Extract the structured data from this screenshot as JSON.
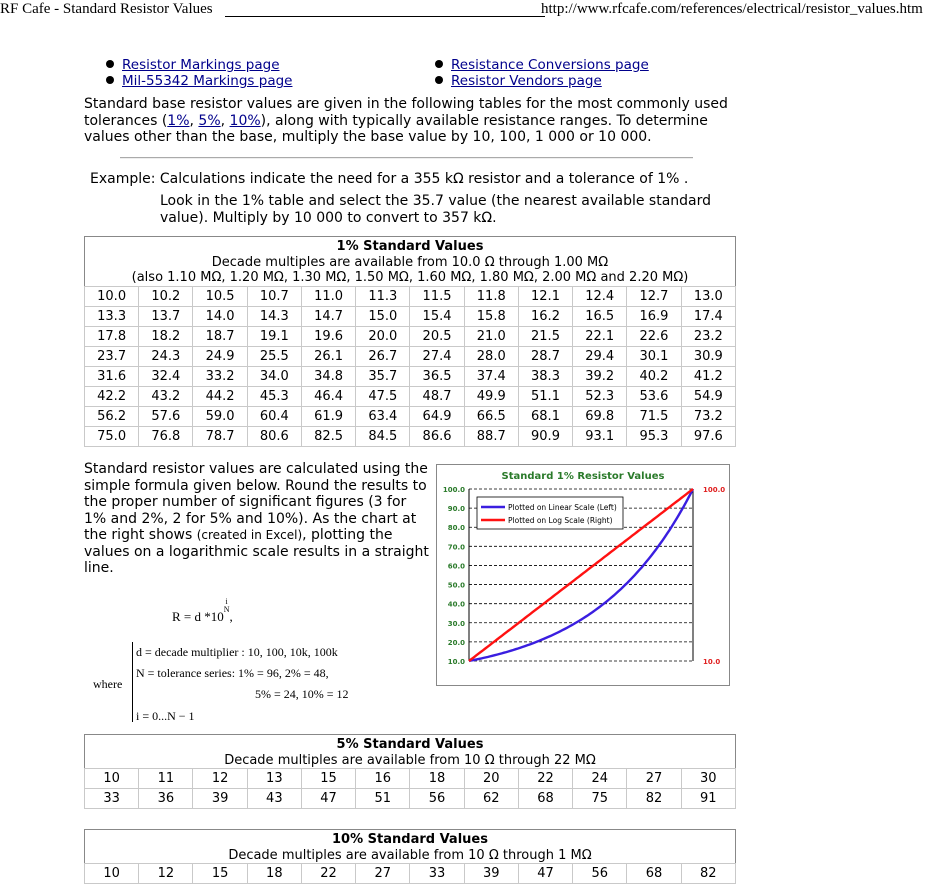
{
  "header": {
    "page_title": "RF Cafe - Standard Resistor Values",
    "url": "http://www.rfcafe.com/references/electrical/resistor_values.htm"
  },
  "links": {
    "left": [
      "Resistor Markings page",
      "Mil-55342 Markings page"
    ],
    "right": [
      "Resistance Conversions page",
      "Resistor Vendors page"
    ]
  },
  "intro": {
    "text_a": "Standard base resistor values are given in the following tables for the most commonly used tolerances (",
    "link_1": "1%",
    "sep_1": ", ",
    "link_5": "5%",
    "sep_2": ", ",
    "link_10": "10%",
    "text_b": "), along with typically available resistance ranges. To determine values other than the base, multiply the base value by 10, 100, 1 000 or 10 000."
  },
  "example": {
    "line1": "Example: Calculations indicate the need for a 355 kΩ resistor and a tolerance of 1% .",
    "line2": "Look in the 1% table and select the 35.7 value (the nearest available standard value). Multiply by 10 000 to convert to 357 kΩ."
  },
  "table1": {
    "title": "1% Standard Values",
    "subtitle": "Decade multiples are available from 10.0 Ω through 1.00 MΩ",
    "note": "(also 1.10 MΩ, 1.20 MΩ, 1.30 MΩ, 1.50 MΩ, 1.60 MΩ, 1.80 MΩ, 2.00 MΩ and 2.20 MΩ)",
    "rows": [
      [
        "10.0",
        "10.2",
        "10.5",
        "10.7",
        "11.0",
        "11.3",
        "11.5",
        "11.8",
        "12.1",
        "12.4",
        "12.7",
        "13.0"
      ],
      [
        "13.3",
        "13.7",
        "14.0",
        "14.3",
        "14.7",
        "15.0",
        "15.4",
        "15.8",
        "16.2",
        "16.5",
        "16.9",
        "17.4"
      ],
      [
        "17.8",
        "18.2",
        "18.7",
        "19.1",
        "19.6",
        "20.0",
        "20.5",
        "21.0",
        "21.5",
        "22.1",
        "22.6",
        "23.2"
      ],
      [
        "23.7",
        "24.3",
        "24.9",
        "25.5",
        "26.1",
        "26.7",
        "27.4",
        "28.0",
        "28.7",
        "29.4",
        "30.1",
        "30.9"
      ],
      [
        "31.6",
        "32.4",
        "33.2",
        "34.0",
        "34.8",
        "35.7",
        "36.5",
        "37.4",
        "38.3",
        "39.2",
        "40.2",
        "41.2"
      ],
      [
        "42.2",
        "43.2",
        "44.2",
        "45.3",
        "46.4",
        "47.5",
        "48.7",
        "49.9",
        "51.1",
        "52.3",
        "53.6",
        "54.9"
      ],
      [
        "56.2",
        "57.6",
        "59.0",
        "60.4",
        "61.9",
        "63.4",
        "64.9",
        "66.5",
        "68.1",
        "69.8",
        "71.5",
        "73.2"
      ],
      [
        "75.0",
        "76.8",
        "78.7",
        "80.6",
        "82.5",
        "84.5",
        "86.6",
        "88.7",
        "90.9",
        "93.1",
        "95.3",
        "97.6"
      ]
    ]
  },
  "paragraph": {
    "text_a": "Standard resistor values are calculated using the simple formula given below. Round the results to the proper number of significant figures (3 for 1% and 2%, 2 for 5% and 10%). As the chart at the right shows ",
    "small": "(created in Excel)",
    "text_b": ", plotting the values on a logarithmic scale results in a straight line."
  },
  "formula": {
    "main": "R = d *10",
    "exp_num": "i",
    "exp_den": "N",
    "trail": ",",
    "where": "where",
    "d_def": "d = decade multiplier : 10, 100, 10k, 100k",
    "n_def": "N = tolerance series: 1% = 96,  2% = 48,",
    "n_def2": "5% = 24,  10% = 12",
    "i_def": "i = 0...N − 1"
  },
  "chart_data": {
    "type": "line",
    "title": "Standard 1% Resistor Values",
    "y_left": {
      "min": 10,
      "max": 100,
      "ticks": [
        "100.0",
        "90.0",
        "80.0",
        "70.0",
        "60.0",
        "50.0",
        "40.0",
        "30.0",
        "20.0",
        "10.0"
      ]
    },
    "y_right": {
      "min": 10,
      "max": 100,
      "scale": "log",
      "ticks": [
        "100.0",
        "10.0"
      ]
    },
    "legend_position": "top-left",
    "grid": true,
    "series": [
      {
        "name": "Plotted on Linear Scale (Left)",
        "color": "#3a1ee0",
        "axis": "left",
        "formula": "10*10^(i/96)",
        "points": 97
      },
      {
        "name": "Plotted on Log Scale (Right)",
        "color": "#ff1111",
        "axis": "right",
        "formula": "10*10^(i/96)",
        "points": 97
      }
    ]
  },
  "table5": {
    "title": "5% Standard Values",
    "subtitle": "Decade multiples are available from 10 Ω through 22 MΩ",
    "rows": [
      [
        "10",
        "11",
        "12",
        "13",
        "15",
        "16",
        "18",
        "20",
        "22",
        "24",
        "27",
        "30"
      ],
      [
        "33",
        "36",
        "39",
        "43",
        "47",
        "51",
        "56",
        "62",
        "68",
        "75",
        "82",
        "91"
      ]
    ]
  },
  "table10": {
    "title": "10% Standard Values",
    "subtitle": "Decade multiples are available from 10 Ω through 1 MΩ",
    "rows": [
      [
        "10",
        "12",
        "15",
        "18",
        "22",
        "27",
        "33",
        "39",
        "47",
        "56",
        "68",
        "82"
      ]
    ]
  }
}
